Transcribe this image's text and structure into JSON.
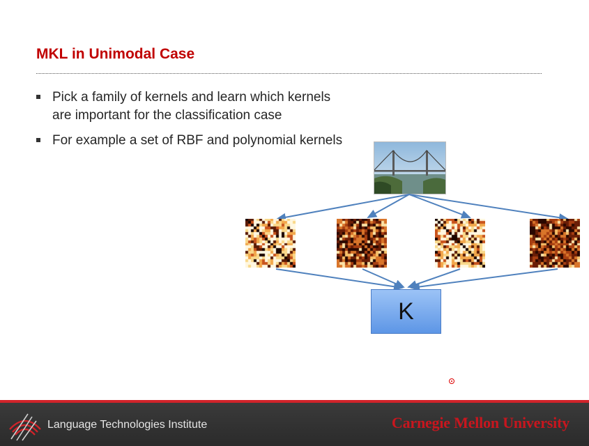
{
  "slide": {
    "title": "MKL in Unimodal Case",
    "bullets": [
      "Pick a family of kernels and learn which kernels are important for the classification case",
      "For example a set of RBF and polynomial kernels"
    ]
  },
  "diagram": {
    "combined_kernel_label": "K",
    "kernel_count": 4,
    "arrow_color": "#4f81bd",
    "box_color": "#6fa3ec"
  },
  "footer": {
    "institute": "Language Technologies Institute",
    "university": "Carnegie Mellon University",
    "accent_color": "#d2232a"
  }
}
